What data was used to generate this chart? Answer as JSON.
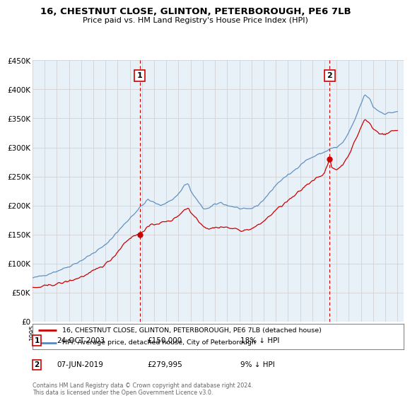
{
  "title": "16, CHESTNUT CLOSE, GLINTON, PETERBOROUGH, PE6 7LB",
  "subtitle": "Price paid vs. HM Land Registry's House Price Index (HPI)",
  "ylim": [
    0,
    450000
  ],
  "yticks": [
    0,
    50000,
    100000,
    150000,
    200000,
    250000,
    300000,
    350000,
    400000,
    450000
  ],
  "ytick_labels": [
    "£0",
    "£50K",
    "£100K",
    "£150K",
    "£200K",
    "£250K",
    "£300K",
    "£350K",
    "£400K",
    "£450K"
  ],
  "bg_color": "#ffffff",
  "plot_bg_color": "#e8f0f8",
  "grid_color": "#cccccc",
  "sale1_date": "24-OCT-2003",
  "sale1_price": 150000,
  "sale1_hpi_diff": "18% ↓ HPI",
  "sale2_date": "07-JUN-2019",
  "sale2_price": 279995,
  "sale2_hpi_diff": "9% ↓ HPI",
  "legend_red_label": "16, CHESTNUT CLOSE, GLINTON, PETERBOROUGH, PE6 7LB (detached house)",
  "legend_blue_label": "HPI: Average price, detached house, City of Peterborough",
  "footnote": "Contains HM Land Registry data © Crown copyright and database right 2024.\nThis data is licensed under the Open Government Licence v3.0.",
  "red_color": "#cc0000",
  "blue_color": "#5588bb",
  "vline_color": "#cc0000",
  "sale1_x": 2003.81,
  "sale2_x": 2019.43,
  "xlim_left": 1995.0,
  "xlim_right": 2025.5
}
